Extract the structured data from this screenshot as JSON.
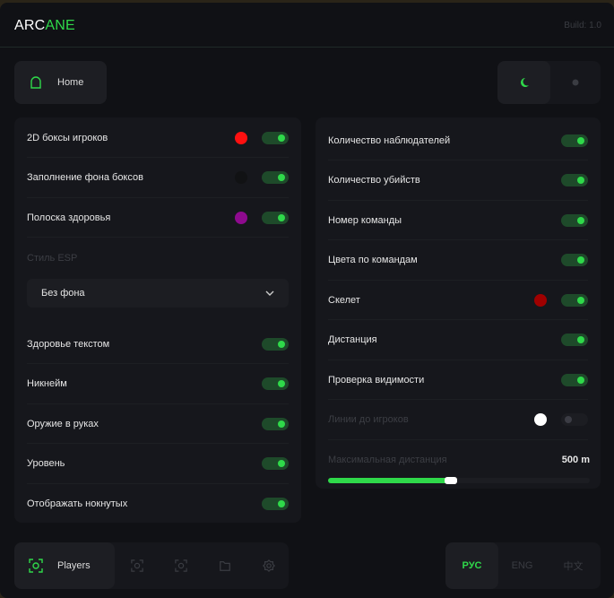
{
  "header": {
    "logo_a": "ARC",
    "logo_b": "ANE",
    "build": "Build: 1.0"
  },
  "top_nav": {
    "home_label": "Home",
    "home_icon": "home-icon",
    "theme_dark_icon": "moon-icon",
    "theme_light_icon": "sun-icon"
  },
  "left_panel": {
    "rows": [
      {
        "label": "2D боксы игроков",
        "color": "#ff1010",
        "on": true
      },
      {
        "label": "Заполнение фона боксов",
        "color": "#111214",
        "on": true
      },
      {
        "label": "Полоска здоровья",
        "color": "#8e0a8e",
        "on": true
      }
    ],
    "esp_style_label": "Стиль ESP",
    "esp_style_value": "Без фона",
    "rows2": [
      {
        "label": "Здоровье текстом",
        "on": true
      },
      {
        "label": "Никнейм",
        "on": true
      },
      {
        "label": "Оружие в руках",
        "on": true
      },
      {
        "label": "Уровень",
        "on": true
      },
      {
        "label": "Отображать нокнутых",
        "on": true
      }
    ]
  },
  "right_panel": {
    "rows": [
      {
        "label": "Количество наблюдателей",
        "on": true
      },
      {
        "label": "Количество убийств",
        "on": true
      },
      {
        "label": "Номер команды",
        "on": true
      },
      {
        "label": "Цвета по командам",
        "on": true
      },
      {
        "label": "Скелет",
        "color": "#a00000",
        "on": true
      },
      {
        "label": "Дистанция",
        "on": true
      },
      {
        "label": "Проверка видимости",
        "on": true
      },
      {
        "label": "Линии до игроков",
        "color": "#ffffff",
        "on": false,
        "disabled": true
      }
    ],
    "slider": {
      "label": "Максимальная дистанция",
      "value_text": "500 m",
      "fill_fraction": 0.47
    }
  },
  "bottom_nav": {
    "players_label": "Players",
    "icons": [
      "players-target-icon",
      "aim-target-icon",
      "view-target-icon",
      "folder-icon",
      "gear-icon"
    ]
  },
  "languages": [
    {
      "label": "РУС",
      "active": true
    },
    {
      "label": "ENG",
      "active": false
    },
    {
      "label": "中文",
      "active": false
    }
  ],
  "colors": {
    "accent": "#2fd94a",
    "background": "#101115",
    "card": "#16171c"
  }
}
